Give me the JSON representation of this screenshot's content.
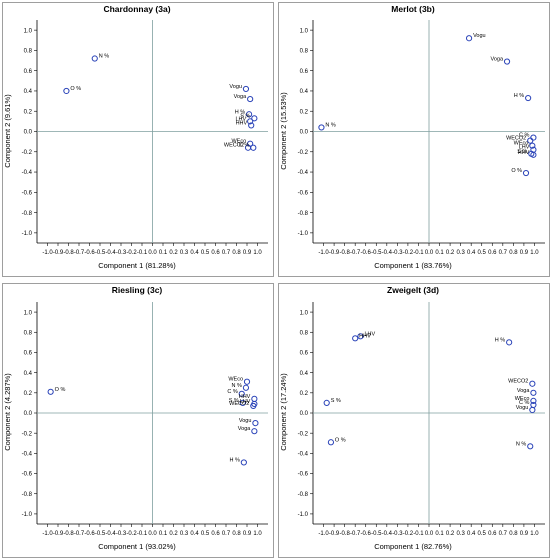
{
  "colors": {
    "point": "#2a43b8",
    "axis": "#000000",
    "refline": "#7f9f9f",
    "frame": "#9e9e9e",
    "text": "#000000"
  },
  "chart_data": [
    {
      "type": "scatter",
      "title": "Chardonnay (3a)",
      "xlabel": "Component  1 (81.28%)",
      "ylabel": "Component  2 (9.61%)",
      "xlim": [
        -1.1,
        1.1
      ],
      "ylim": [
        -1.1,
        1.1
      ],
      "xticks": [
        "-1.0",
        "-0.9",
        "-0.8",
        "-0.7",
        "-0.6",
        "-0.5",
        "-0.4",
        "-0.3",
        "-0.2",
        "-0.1",
        "0.0",
        "0.1",
        "0.2",
        "0.3",
        "0.4",
        "0.5",
        "0.6",
        "0.7",
        "0.8",
        "0.9",
        "1.0"
      ],
      "yticks": [
        "-1.0",
        "-0.8",
        "-0.6",
        "-0.4",
        "-0.2",
        "0.0",
        "0.2",
        "0.4",
        "0.6",
        "0.8",
        "1.0"
      ],
      "points": [
        {
          "label": "N %",
          "x": -0.55,
          "y": 0.72
        },
        {
          "label": "O %",
          "x": -0.82,
          "y": 0.4
        },
        {
          "label": "Vogu",
          "x": 0.89,
          "y": 0.42
        },
        {
          "label": "Voga",
          "x": 0.93,
          "y": 0.32
        },
        {
          "label": "H %",
          "x": 0.92,
          "y": 0.17
        },
        {
          "label": "LHV",
          "x": 0.93,
          "y": 0.1
        },
        {
          "label": "S %",
          "x": 0.97,
          "y": 0.13
        },
        {
          "label": "HHV",
          "x": 0.94,
          "y": 0.06
        },
        {
          "label": "WEco",
          "x": 0.93,
          "y": -0.12
        },
        {
          "label": "WECO2",
          "x": 0.91,
          "y": -0.16
        },
        {
          "label": "C %",
          "x": 0.96,
          "y": -0.16
        }
      ]
    },
    {
      "type": "scatter",
      "title": "Merlot (3b)",
      "xlabel": "Component  1 (83.76%)",
      "ylabel": "Component  2 (15.53%)",
      "xlim": [
        -1.1,
        1.1
      ],
      "ylim": [
        -1.1,
        1.1
      ],
      "xticks": [
        "-1.0",
        "-0.9",
        "-0.8",
        "-0.7",
        "-0.6",
        "-0.5",
        "-0.4",
        "-0.3",
        "-0.2",
        "-0.1",
        "0.0",
        "0.1",
        "0.2",
        "0.3",
        "0.4",
        "0.5",
        "0.6",
        "0.7",
        "0.8",
        "0.9",
        "1.0"
      ],
      "yticks": [
        "-1.0",
        "-0.8",
        "-0.6",
        "-0.4",
        "-0.2",
        "0.0",
        "0.2",
        "0.4",
        "0.6",
        "0.8",
        "1.0"
      ],
      "points": [
        {
          "label": "Vogu",
          "x": 0.38,
          "y": 0.92
        },
        {
          "label": "Voga",
          "x": 0.74,
          "y": 0.69
        },
        {
          "label": "H %",
          "x": 0.94,
          "y": 0.33
        },
        {
          "label": "N %",
          "x": -1.02,
          "y": 0.04
        },
        {
          "label": "C %",
          "x": 0.99,
          "y": -0.06
        },
        {
          "label": "WECO2",
          "x": 0.96,
          "y": -0.09
        },
        {
          "label": "WEco",
          "x": 0.98,
          "y": -0.14
        },
        {
          "label": "LHV",
          "x": 0.99,
          "y": -0.18
        },
        {
          "label": "HHV",
          "x": 0.99,
          "y": -0.23
        },
        {
          "label": "S %",
          "x": 0.97,
          "y": -0.22
        },
        {
          "label": "O %",
          "x": 0.92,
          "y": -0.41
        }
      ]
    },
    {
      "type": "scatter",
      "title": "Riesling (3c)",
      "xlabel": "Component  1 (93.02%)",
      "ylabel": "Component 2 (4.287%)",
      "xlim": [
        -1.1,
        1.1
      ],
      "ylim": [
        -1.1,
        1.1
      ],
      "xticks": [
        "-1.0",
        "-0.9",
        "-0.8",
        "-0.7",
        "-0.6",
        "-0.5",
        "-0.4",
        "-0.3",
        "-0.2",
        "-0.1",
        "0.0",
        "0.1",
        "0.2",
        "0.3",
        "0.4",
        "0.5",
        "0.6",
        "0.7",
        "0.8",
        "0.9",
        "1.0"
      ],
      "yticks": [
        "-1.0",
        "-0.8",
        "-0.6",
        "-0.4",
        "-0.2",
        "0.0",
        "0.2",
        "0.4",
        "0.6",
        "0.8",
        "1.0"
      ],
      "points": [
        {
          "label": "O %",
          "x": -0.97,
          "y": 0.21
        },
        {
          "label": "WEco",
          "x": 0.9,
          "y": 0.31
        },
        {
          "label": "N %",
          "x": 0.89,
          "y": 0.25
        },
        {
          "label": "C %",
          "x": 0.85,
          "y": 0.19
        },
        {
          "label": "HHV",
          "x": 0.97,
          "y": 0.14
        },
        {
          "label": "S %",
          "x": 0.86,
          "y": 0.1
        },
        {
          "label": "LHV",
          "x": 0.97,
          "y": 0.09
        },
        {
          "label": "WECO2",
          "x": 0.96,
          "y": 0.07
        },
        {
          "label": "Vogu",
          "x": 0.98,
          "y": -0.1
        },
        {
          "label": "Voga",
          "x": 0.97,
          "y": -0.18
        },
        {
          "label": "H %",
          "x": 0.87,
          "y": -0.49
        }
      ]
    },
    {
      "type": "scatter",
      "title": "Zweigelt (3d)",
      "xlabel": "Component  1 (82.76%)",
      "ylabel": "Component  2 (17.24%)",
      "xlim": [
        -1.1,
        1.1
      ],
      "ylim": [
        -1.1,
        1.1
      ],
      "xticks": [
        "-1.0",
        "-0.9",
        "-0.8",
        "-0.7",
        "-0.6",
        "-0.5",
        "-0.4",
        "-0.3",
        "-0.2",
        "-0.1",
        "0.0",
        "0.1",
        "0.2",
        "0.3",
        "0.4",
        "0.5",
        "0.6",
        "0.7",
        "0.8",
        "0.9",
        "1.0"
      ],
      "yticks": [
        "-1.0",
        "-0.8",
        "-0.6",
        "-0.4",
        "-0.2",
        "0.0",
        "0.2",
        "0.4",
        "0.6",
        "0.8",
        "1.0"
      ],
      "points": [
        {
          "label": "LHV",
          "x": -0.65,
          "y": 0.76
        },
        {
          "label": "HHV",
          "x": -0.7,
          "y": 0.74
        },
        {
          "label": "H %",
          "x": 0.76,
          "y": 0.7
        },
        {
          "label": "WECO2",
          "x": 0.98,
          "y": 0.29
        },
        {
          "label": "Voga",
          "x": 0.99,
          "y": 0.2
        },
        {
          "label": "WEco",
          "x": 0.99,
          "y": 0.12
        },
        {
          "label": "C %",
          "x": 0.99,
          "y": 0.08
        },
        {
          "label": "Vogu",
          "x": 0.98,
          "y": 0.03
        },
        {
          "label": "S %",
          "x": -0.97,
          "y": 0.1
        },
        {
          "label": "O %",
          "x": -0.93,
          "y": -0.29
        },
        {
          "label": "N %",
          "x": 0.96,
          "y": -0.33
        }
      ]
    }
  ]
}
